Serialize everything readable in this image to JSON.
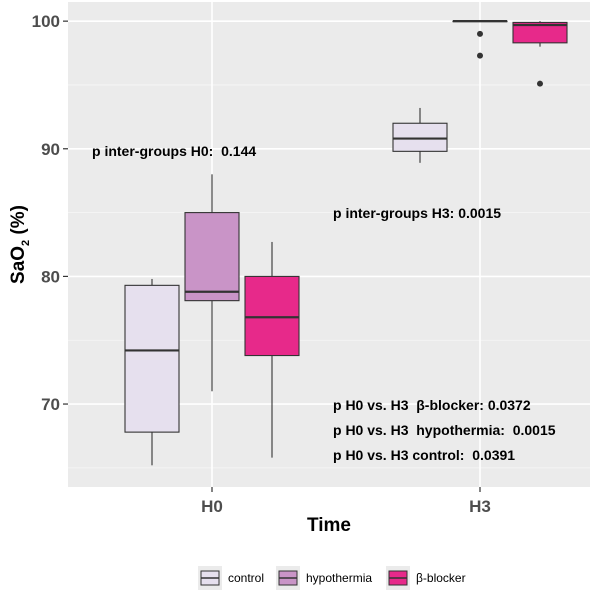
{
  "chart_data": {
    "type": "box",
    "xlabel": "Time",
    "ylabel": "SaO",
    "ylabel_sub": "2",
    "ylabel_suffix": " (%)",
    "ylim": [
      63.5,
      101.5
    ],
    "yticks": [
      70,
      80,
      90,
      100
    ],
    "categories": [
      "H0",
      "H3"
    ],
    "grid": true,
    "legend_position": "bottom",
    "series": [
      {
        "name": "control",
        "color": "#e6e0ee",
        "boxes": [
          {
            "category": "H0",
            "whisker_low": 65.2,
            "q1": 67.8,
            "median": 74.2,
            "q3": 79.3,
            "whisker_high": 79.8,
            "outliers": []
          },
          {
            "category": "H3",
            "whisker_low": 88.9,
            "q1": 89.8,
            "median": 90.8,
            "q3": 92.0,
            "whisker_high": 93.2,
            "outliers": []
          }
        ]
      },
      {
        "name": "hypothermia",
        "color": "#c994c7",
        "boxes": [
          {
            "category": "H0",
            "whisker_low": 71.0,
            "q1": 78.1,
            "median": 78.8,
            "q3": 85.0,
            "whisker_high": 88.0,
            "outliers": []
          },
          {
            "category": "H3",
            "whisker_low": 100.0,
            "q1": 100.0,
            "median": 100.0,
            "q3": 100.0,
            "whisker_high": 100.0,
            "outliers": [
              99.0,
              97.3
            ]
          }
        ]
      },
      {
        "name": "β-blocker",
        "color": "#e7298a",
        "boxes": [
          {
            "category": "H0",
            "whisker_low": 65.8,
            "q1": 73.8,
            "median": 76.8,
            "q3": 80.0,
            "whisker_high": 82.7,
            "outliers": []
          },
          {
            "category": "H3",
            "whisker_low": 98.0,
            "q1": 98.3,
            "median": 99.7,
            "q3": 99.9,
            "whisker_high": 100.0,
            "outliers": [
              95.1
            ]
          }
        ]
      }
    ],
    "annotations": [
      {
        "text": "p inter-groups H0:  0.144"
      },
      {
        "text": "p inter-groups H3: 0.0015"
      },
      {
        "text": "p H0 vs. H3  β-blocker: 0.0372"
      },
      {
        "text": "p H0 vs. H3  hypothermia:  0.0015"
      },
      {
        "text": "p H0 vs. H3 control:  0.0391"
      }
    ]
  }
}
